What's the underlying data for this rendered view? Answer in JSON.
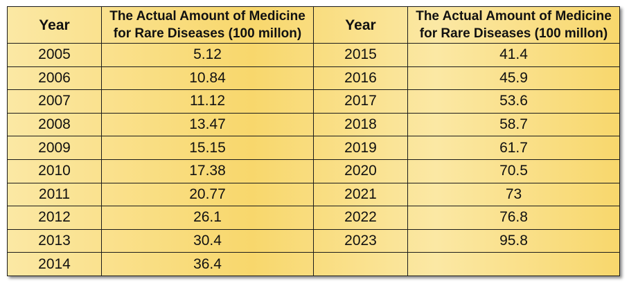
{
  "header": {
    "year": "Year",
    "amount_line1": "The Actual Amount of Medicine",
    "amount_line2": "for Rare Diseases (100 millon)"
  },
  "rows": [
    {
      "left_year": "2005",
      "left_value": "5.12",
      "right_year": "2015",
      "right_value": "41.4"
    },
    {
      "left_year": "2006",
      "left_value": "10.84",
      "right_year": "2016",
      "right_value": "45.9"
    },
    {
      "left_year": "2007",
      "left_value": "11.12",
      "right_year": "2017",
      "right_value": "53.6"
    },
    {
      "left_year": "2008",
      "left_value": "13.47",
      "right_year": "2018",
      "right_value": "58.7"
    },
    {
      "left_year": "2009",
      "left_value": "15.15",
      "right_year": "2019",
      "right_value": "61.7"
    },
    {
      "left_year": "2010",
      "left_value": "17.38",
      "right_year": "2020",
      "right_value": "70.5"
    },
    {
      "left_year": "2011",
      "left_value": "20.77",
      "right_year": "2021",
      "right_value": "73"
    },
    {
      "left_year": "2012",
      "left_value": "26.1",
      "right_year": "2022",
      "right_value": "76.8"
    },
    {
      "left_year": "2013",
      "left_value": "30.4",
      "right_year": "2023",
      "right_value": "95.8"
    },
    {
      "left_year": "2014",
      "left_value": "36.4",
      "right_year": "",
      "right_value": ""
    }
  ]
}
